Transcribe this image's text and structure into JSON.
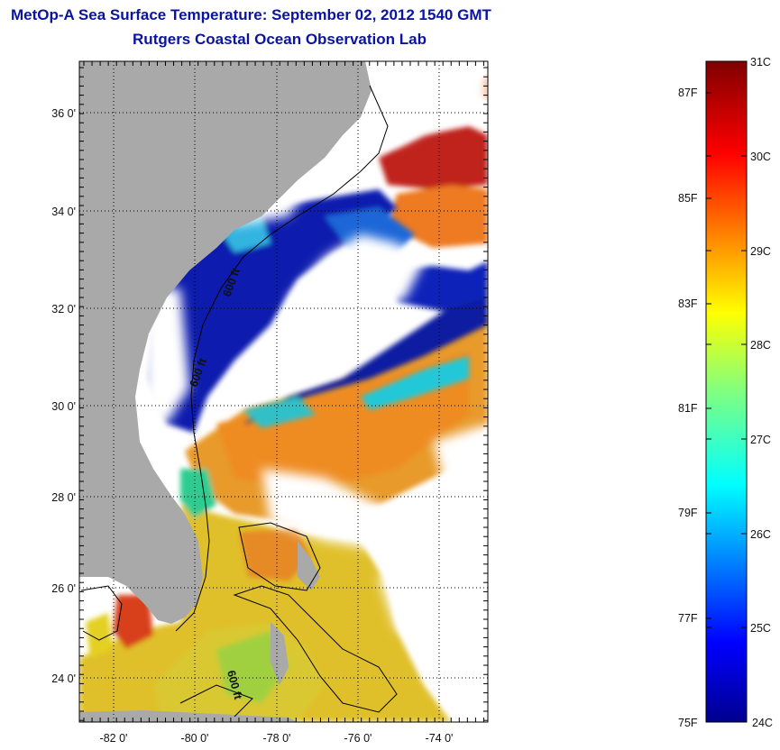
{
  "title_line1": "MetOp-A Sea Surface Temperature:  September 02, 2012 1540 GMT",
  "title_line2": "Rutgers Coastal Ocean Observation Lab",
  "map": {
    "lat_labels": [
      "36 0'",
      "34 0'",
      "32 0'",
      "30 0'",
      "28 0'",
      "26 0'",
      "24 0'"
    ],
    "lon_labels": [
      "-82 0'",
      "-80 0'",
      "-78 0'",
      "-76 0'",
      "-74 0'"
    ],
    "contour_labels": [
      "600 ft",
      "600 ft",
      "600 ft"
    ],
    "colors": {
      "land": "#a9a9a9",
      "cloud": "#ffffff",
      "warm": "#e8861e",
      "hot": "#c8201e",
      "cold": "#0a1aa8",
      "mid": "#2ab8e0",
      "yellow": "#e6d21e"
    }
  },
  "colorbar": {
    "celsius": [
      "31C",
      "30C",
      "29C",
      "28C",
      "27C",
      "26C",
      "25C",
      "24C"
    ],
    "fahrenheit": [
      "87F",
      "85F",
      "83F",
      "81F",
      "79F",
      "77F",
      "75F"
    ]
  }
}
